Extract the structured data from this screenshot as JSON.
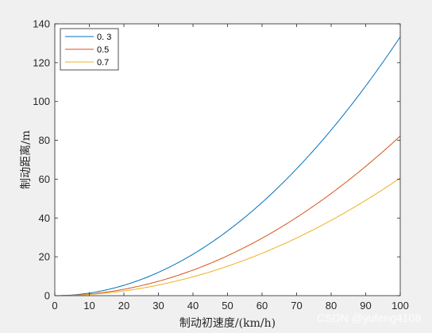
{
  "chart_data": {
    "type": "line",
    "title": "",
    "xlabel": "制动初速度/(km/h)",
    "ylabel": "制动距离/m",
    "xlim": [
      0,
      100
    ],
    "ylim": [
      0,
      140
    ],
    "xticks": [
      0,
      10,
      20,
      30,
      40,
      50,
      60,
      70,
      80,
      90,
      100
    ],
    "yticks": [
      0,
      20,
      40,
      60,
      80,
      100,
      120,
      140
    ],
    "grid": false,
    "legend_position": "top-left",
    "x": [
      0,
      10,
      20,
      30,
      40,
      50,
      60,
      70,
      80,
      90,
      100
    ],
    "series": [
      {
        "name": "0. 3",
        "color": "#0072bd",
        "values": [
          0,
          1.3,
          5.3,
          12.0,
          21.3,
          33.3,
          48.0,
          65.3,
          85.3,
          108.0,
          133.3
        ]
      },
      {
        "name": "0.5",
        "color": "#d95319",
        "values": [
          0,
          0.8,
          3.3,
          7.4,
          13.2,
          20.6,
          29.6,
          40.3,
          52.6,
          66.6,
          82.2
        ]
      },
      {
        "name": "0.7",
        "color": "#edb120",
        "values": [
          0,
          0.6,
          2.4,
          5.5,
          9.7,
          15.2,
          21.8,
          29.7,
          38.8,
          49.1,
          60.6
        ]
      }
    ]
  },
  "watermark": "CSDN @yufeng4108"
}
